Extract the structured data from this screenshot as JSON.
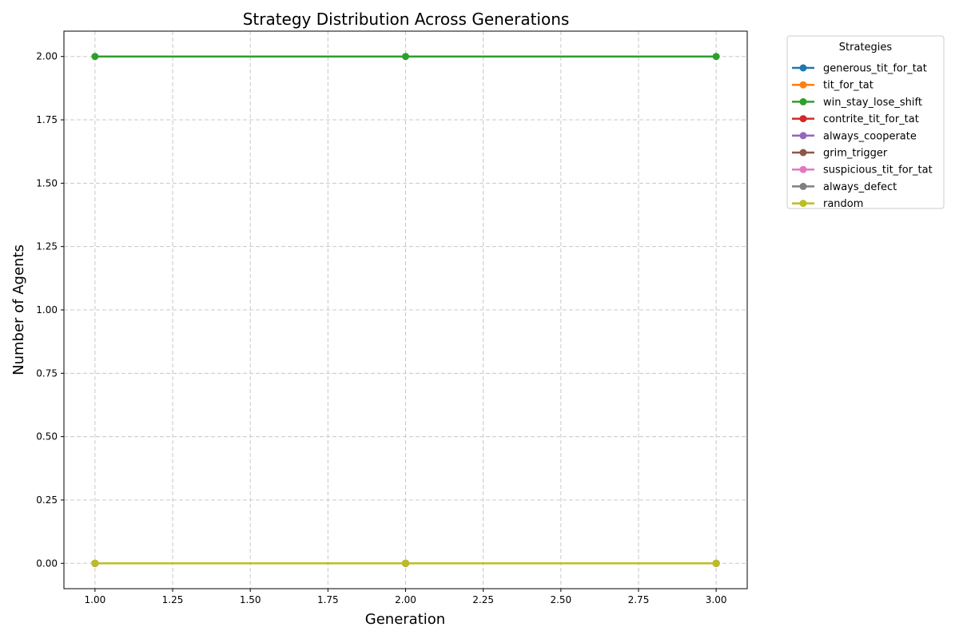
{
  "chart_data": {
    "type": "line",
    "title": "Strategy Distribution Across Generations",
    "xlabel": "Generation",
    "ylabel": "Number of Agents",
    "x": [
      1,
      2,
      3
    ],
    "xlim": [
      0.9,
      3.1
    ],
    "ylim": [
      -0.1,
      2.1
    ],
    "xticks": [
      1.0,
      1.25,
      1.5,
      1.75,
      2.0,
      2.25,
      2.5,
      2.75,
      3.0
    ],
    "xtick_labels": [
      "1.00",
      "1.25",
      "1.50",
      "1.75",
      "2.00",
      "2.25",
      "2.50",
      "2.75",
      "3.00"
    ],
    "yticks": [
      0.0,
      0.25,
      0.5,
      0.75,
      1.0,
      1.25,
      1.5,
      1.75,
      2.0
    ],
    "ytick_labels": [
      "0.00",
      "0.25",
      "0.50",
      "0.75",
      "1.00",
      "1.25",
      "1.50",
      "1.75",
      "2.00"
    ],
    "grid": true,
    "legend_title": "Strategies",
    "legend_placement": "outside-top-right",
    "series": [
      {
        "name": "generous_tit_for_tat",
        "color": "#1f77b4",
        "values": [
          0,
          0,
          0
        ]
      },
      {
        "name": "tit_for_tat",
        "color": "#ff7f0e",
        "values": [
          0,
          0,
          0
        ]
      },
      {
        "name": "win_stay_lose_shift",
        "color": "#2ca02c",
        "values": [
          2,
          2,
          2
        ]
      },
      {
        "name": "contrite_tit_for_tat",
        "color": "#d62728",
        "values": [
          0,
          0,
          0
        ]
      },
      {
        "name": "always_cooperate",
        "color": "#9467bd",
        "values": [
          0,
          0,
          0
        ]
      },
      {
        "name": "grim_trigger",
        "color": "#8c564b",
        "values": [
          0,
          0,
          0
        ]
      },
      {
        "name": "suspicious_tit_for_tat",
        "color": "#e377c2",
        "values": [
          0,
          0,
          0
        ]
      },
      {
        "name": "always_defect",
        "color": "#7f7f7f",
        "values": [
          0,
          0,
          0
        ]
      },
      {
        "name": "random",
        "color": "#bcbd22",
        "values": [
          0,
          0,
          0
        ]
      }
    ]
  }
}
